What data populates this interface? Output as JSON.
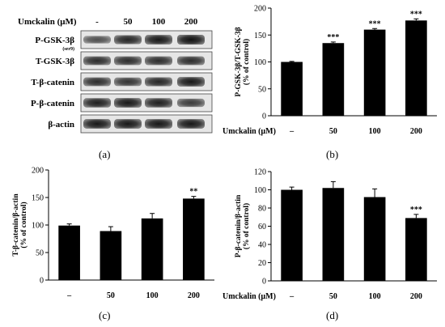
{
  "blot": {
    "header_label": "Umckalin (μM)",
    "lanes": [
      "-",
      "50",
      "100",
      "200"
    ],
    "rows": [
      {
        "label": "P-GSK-3β",
        "sub": "(ser9)",
        "intensity": [
          0.55,
          0.85,
          0.95,
          1.0
        ]
      },
      {
        "label": "T-GSK-3β",
        "sub": "",
        "intensity": [
          0.8,
          0.8,
          0.8,
          0.8
        ]
      },
      {
        "label": "T-β-catenin",
        "sub": "",
        "intensity": [
          0.8,
          0.75,
          0.85,
          0.95
        ]
      },
      {
        "label": "P-β-catenin",
        "sub": "",
        "intensity": [
          0.9,
          0.95,
          0.9,
          0.7
        ]
      },
      {
        "label": "β-actin",
        "sub": "",
        "intensity": [
          0.95,
          0.95,
          0.95,
          0.95
        ]
      }
    ]
  },
  "panel_labels": {
    "a": "(a)",
    "b": "(b)",
    "c": "(c)",
    "d": "(d)"
  },
  "chart_data": [
    {
      "type": "bar",
      "panel": "b",
      "categories": [
        "–",
        "50",
        "100",
        "200"
      ],
      "values": [
        100,
        135,
        160,
        177
      ],
      "errors": [
        1,
        2,
        2,
        3
      ],
      "significance": [
        "",
        "***",
        "***",
        "***"
      ],
      "ylabel": "P-GSK-3β/T-GSK-3β",
      "ylabel2": "(% of control)",
      "xlabel": "Umckalin (μM)",
      "ylim": [
        0,
        200
      ],
      "yticks": [
        0,
        50,
        100,
        150,
        200
      ],
      "bar_color": "#000000"
    },
    {
      "type": "bar",
      "panel": "c",
      "categories": [
        "–",
        "50",
        "100",
        "200"
      ],
      "values": [
        99,
        89,
        112,
        148
      ],
      "errors": [
        3,
        8,
        9,
        4
      ],
      "significance": [
        "",
        "",
        "",
        "**"
      ],
      "ylabel": "T-β-catenin/β-actin",
      "ylabel2": "(% of control)",
      "xlabel": "Umckalin (μM)",
      "ylim": [
        0,
        200
      ],
      "yticks": [
        0,
        50,
        100,
        150,
        200
      ],
      "bar_color": "#000000"
    },
    {
      "type": "bar",
      "panel": "d",
      "categories": [
        "–",
        "50",
        "100",
        "200"
      ],
      "values": [
        100,
        102,
        92,
        69
      ],
      "errors": [
        3,
        7,
        9,
        4
      ],
      "significance": [
        "",
        "",
        "",
        "***"
      ],
      "ylabel": "P-β-catenin/β-actin",
      "ylabel2": "(% of control)",
      "xlabel": "Umckalin (μM)",
      "ylim": [
        0,
        120
      ],
      "yticks": [
        0,
        20,
        40,
        60,
        80,
        100,
        120
      ],
      "bar_color": "#000000"
    }
  ]
}
